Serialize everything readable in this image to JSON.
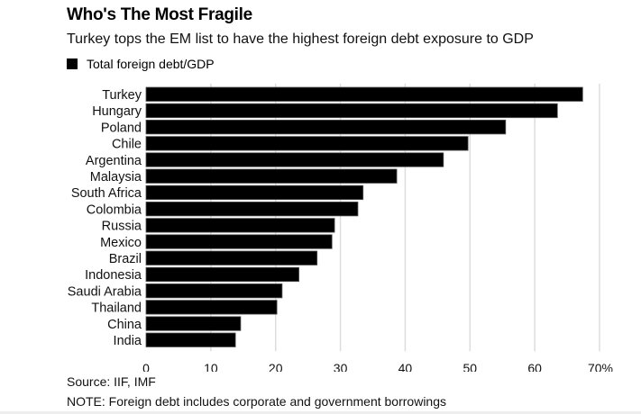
{
  "chart_data": {
    "type": "bar",
    "orientation": "horizontal",
    "title": "Who's The Most Fragile",
    "subtitle": "Turkey tops the EM list to have the highest foreign debt exposure to GDP",
    "legend": [
      "Total foreign debt/GDP"
    ],
    "legend_position": "top-left",
    "categories": [
      "Turkey",
      "Hungary",
      "Poland",
      "Chile",
      "Argentina",
      "Malaysia",
      "South Africa",
      "Colombia",
      "Russia",
      "Mexico",
      "Brazil",
      "Indonesia",
      "Saudi Arabia",
      "Thailand",
      "China",
      "India"
    ],
    "series": [
      {
        "name": "Total foreign debt/GDP",
        "color": "#000000",
        "values": [
          67.4,
          63.5,
          55.5,
          49.7,
          45.9,
          38.7,
          33.5,
          32.7,
          29.1,
          28.7,
          26.4,
          23.6,
          21.0,
          20.2,
          14.6,
          13.8
        ]
      }
    ],
    "xlabel": "",
    "ylabel": "",
    "xlim": [
      0,
      70
    ],
    "xticks": [
      0,
      10,
      20,
      30,
      40,
      50,
      60,
      70
    ],
    "xtick_labels": [
      "0",
      "10",
      "20",
      "30",
      "40",
      "50",
      "60",
      "70%"
    ],
    "grid": true,
    "source": "Source: IIF, IMF",
    "note": "NOTE: Foreign debt includes corporate and government borrowings"
  },
  "colors": {
    "bar": "#000000",
    "grid": "#dddddd",
    "bar_stroke": "#555555"
  }
}
